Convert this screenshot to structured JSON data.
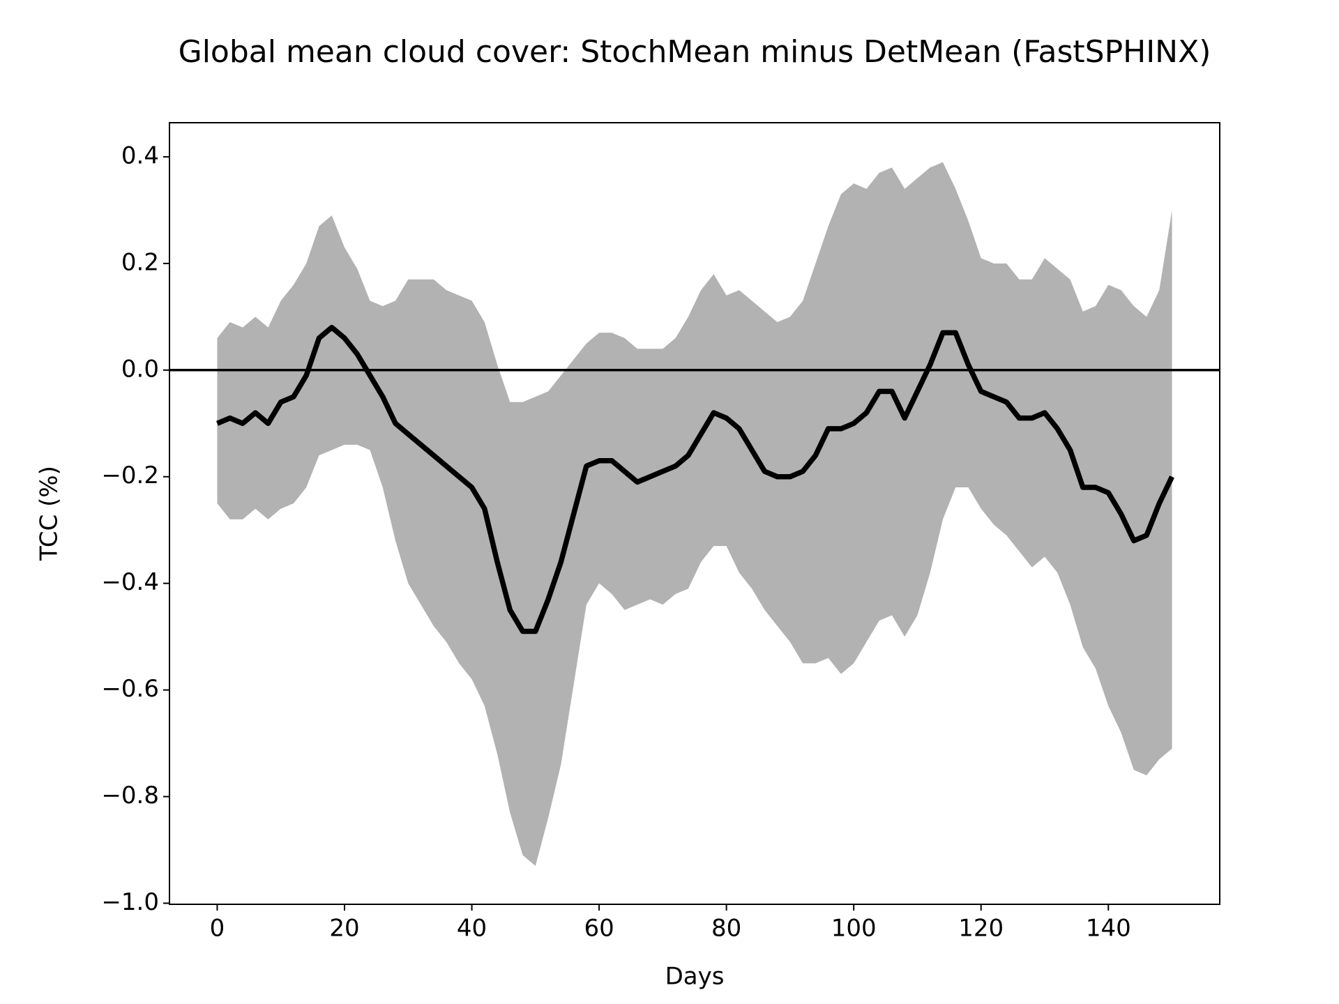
{
  "chart_data": {
    "type": "line",
    "title": "Global mean cloud cover: StochMean minus DetMean (FastSPHINX)",
    "xlabel": "Days",
    "ylabel": "TCC (%)",
    "x": [
      0,
      2,
      4,
      6,
      8,
      10,
      12,
      14,
      16,
      18,
      20,
      22,
      24,
      26,
      28,
      30,
      32,
      34,
      36,
      38,
      40,
      42,
      44,
      46,
      48,
      50,
      52,
      54,
      56,
      58,
      60,
      62,
      64,
      66,
      68,
      70,
      72,
      74,
      76,
      78,
      80,
      82,
      84,
      86,
      88,
      90,
      92,
      94,
      96,
      98,
      100,
      102,
      104,
      106,
      108,
      110,
      112,
      114,
      116,
      118,
      120,
      122,
      124,
      126,
      128,
      130,
      132,
      134,
      136,
      138,
      140,
      142,
      144,
      146,
      148,
      150
    ],
    "series": [
      {
        "color": "#000000",
        "values": [
          -0.1,
          -0.09,
          -0.1,
          -0.08,
          -0.1,
          -0.06,
          -0.05,
          -0.01,
          0.06,
          0.08,
          0.06,
          0.03,
          -0.01,
          -0.05,
          -0.1,
          -0.12,
          -0.14,
          -0.16,
          -0.18,
          -0.2,
          -0.22,
          -0.26,
          -0.36,
          -0.45,
          -0.49,
          -0.49,
          -0.43,
          -0.36,
          -0.27,
          -0.18,
          -0.17,
          -0.17,
          -0.19,
          -0.21,
          -0.2,
          -0.19,
          -0.18,
          -0.16,
          -0.12,
          -0.08,
          -0.09,
          -0.11,
          -0.15,
          -0.19,
          -0.2,
          -0.2,
          -0.19,
          -0.16,
          -0.11,
          -0.11,
          -0.1,
          -0.08,
          -0.04,
          -0.04,
          -0.09,
          -0.04,
          0.01,
          0.07,
          0.07,
          0.01,
          -0.04,
          -0.05,
          -0.06,
          -0.09,
          -0.09,
          -0.08,
          -0.11,
          -0.15,
          -0.22,
          -0.22,
          -0.23,
          -0.27,
          -0.32,
          -0.31,
          -0.25,
          -0.2
        ]
      }
    ],
    "band": {
      "color": "#b2b2b2",
      "upper": [
        0.06,
        0.09,
        0.08,
        0.1,
        0.08,
        0.13,
        0.16,
        0.2,
        0.27,
        0.29,
        0.23,
        0.19,
        0.13,
        0.12,
        0.13,
        0.17,
        0.17,
        0.17,
        0.15,
        0.14,
        0.13,
        0.09,
        0.01,
        -0.06,
        -0.06,
        -0.05,
        -0.04,
        -0.01,
        0.02,
        0.05,
        0.07,
        0.07,
        0.06,
        0.04,
        0.04,
        0.04,
        0.06,
        0.1,
        0.15,
        0.18,
        0.14,
        0.15,
        0.13,
        0.11,
        0.09,
        0.1,
        0.13,
        0.2,
        0.27,
        0.33,
        0.35,
        0.34,
        0.37,
        0.38,
        0.34,
        0.36,
        0.38,
        0.39,
        0.34,
        0.28,
        0.21,
        0.2,
        0.2,
        0.17,
        0.17,
        0.21,
        0.19,
        0.17,
        0.11,
        0.12,
        0.16,
        0.15,
        0.12,
        0.1,
        0.15,
        0.3
      ],
      "lower": [
        -0.25,
        -0.28,
        -0.28,
        -0.26,
        -0.28,
        -0.26,
        -0.25,
        -0.22,
        -0.16,
        -0.15,
        -0.14,
        -0.14,
        -0.15,
        -0.22,
        -0.32,
        -0.4,
        -0.44,
        -0.48,
        -0.51,
        -0.55,
        -0.58,
        -0.63,
        -0.72,
        -0.83,
        -0.91,
        -0.93,
        -0.84,
        -0.74,
        -0.59,
        -0.44,
        -0.4,
        -0.42,
        -0.45,
        -0.44,
        -0.43,
        -0.44,
        -0.42,
        -0.41,
        -0.36,
        -0.33,
        -0.33,
        -0.38,
        -0.41,
        -0.45,
        -0.48,
        -0.51,
        -0.55,
        -0.55,
        -0.54,
        -0.57,
        -0.55,
        -0.51,
        -0.47,
        -0.46,
        -0.5,
        -0.46,
        -0.38,
        -0.28,
        -0.22,
        -0.22,
        -0.26,
        -0.29,
        -0.31,
        -0.34,
        -0.37,
        -0.35,
        -0.38,
        -0.44,
        -0.52,
        -0.56,
        -0.63,
        -0.68,
        -0.75,
        -0.76,
        -0.73,
        -0.71
      ]
    },
    "hline": 0,
    "xlim": [
      -7.5,
      157.5
    ],
    "xticks": [
      0,
      20,
      40,
      60,
      80,
      100,
      120,
      140
    ],
    "ylim": [
      -1.002,
      0.464
    ],
    "yticks": [
      {
        "value": -1.0,
        "label": "−1.0"
      },
      {
        "value": -0.8,
        "label": "−0.8"
      },
      {
        "value": -0.6,
        "label": "−0.6"
      },
      {
        "value": -0.4,
        "label": "−0.4"
      },
      {
        "value": -0.2,
        "label": "−0.2"
      },
      {
        "value": 0,
        "label": "0.0"
      },
      0.2,
      0.4
    ]
  }
}
